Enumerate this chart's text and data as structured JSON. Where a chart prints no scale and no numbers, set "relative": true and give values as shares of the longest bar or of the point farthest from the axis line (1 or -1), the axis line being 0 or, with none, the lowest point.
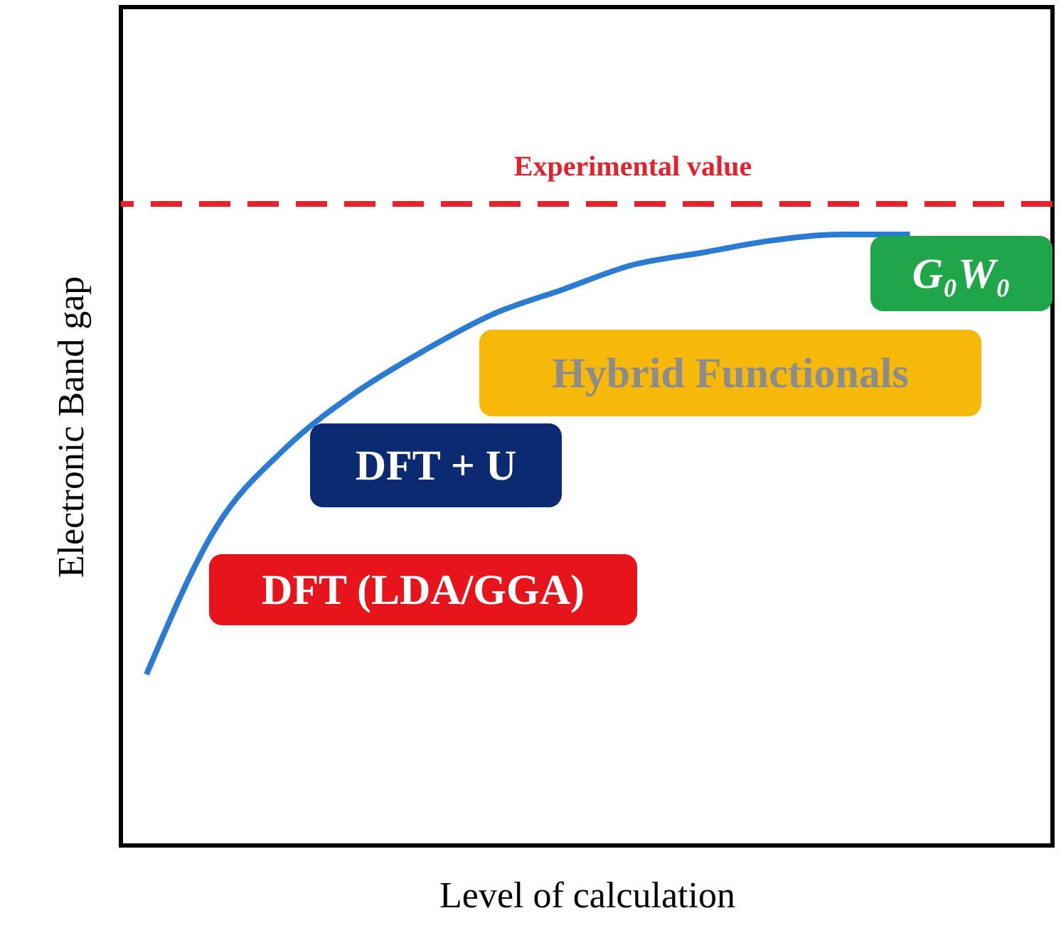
{
  "chart_data": {
    "type": "line",
    "relative": true,
    "xlabel": "Level of calculation",
    "ylabel": "Electronic Band gap",
    "categories": [
      null,
      null,
      null,
      null,
      null,
      null,
      null,
      null,
      null,
      null,
      null,
      null
    ],
    "series": [
      {
        "color": "#2b7bd3",
        "values": [
          0.28,
          0.52,
          0.65,
          0.74,
          0.81,
          0.87,
          0.91,
          0.95,
          0.97,
          0.99,
          1.0,
          1.0
        ]
      }
    ],
    "ref_lines": [
      {
        "axis": "y",
        "value": 1.05,
        "label": "Experimental value",
        "color": "#e8202a",
        "line_style": "dashed"
      }
    ],
    "annotations": [
      "DFT (LDA/GGA)",
      "DFT + U",
      "Hybrid  Functionals",
      "G₀W₀"
    ],
    "grid": false,
    "marker": "none",
    "line_style": "solid"
  }
}
